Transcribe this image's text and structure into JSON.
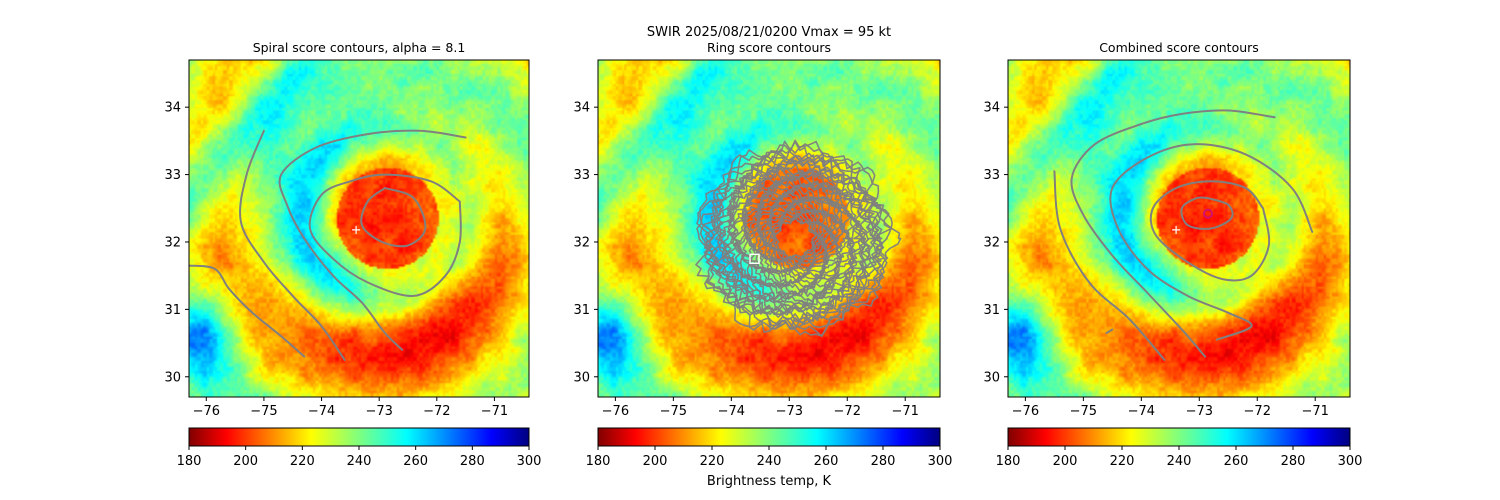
{
  "suptitle": "SWIR  2025/08/21/0200    Vmax = 95 kt",
  "colorbar": {
    "label": "Brightness temp, K",
    "ticks": [
      180,
      200,
      220,
      240,
      260,
      280,
      300
    ],
    "range": [
      180,
      300
    ],
    "colormap": "jet_r"
  },
  "chart_data": [
    {
      "type": "heatmap",
      "title": "Spiral score contours, alpha =  8.1",
      "xlim": [
        -76.3,
        -70.4
      ],
      "ylim": [
        29.7,
        34.7
      ],
      "xticks": [
        -76,
        -75,
        -74,
        -73,
        -72,
        -71
      ],
      "yticks": [
        30,
        31,
        32,
        33,
        34
      ],
      "xlabel": "",
      "ylabel": "",
      "eye_brightness_temp_K": 195,
      "markers": [
        {
          "kind": "plus",
          "color": "#ffffff",
          "lon": -73.4,
          "lat": 32.18
        }
      ],
      "contour_color": "#808080",
      "contours": [
        [
          [
            -72.9,
            32.8
          ],
          [
            -72.4,
            32.65
          ],
          [
            -72.2,
            32.2
          ],
          [
            -72.5,
            31.95
          ],
          [
            -72.95,
            32.0
          ],
          [
            -73.3,
            32.25
          ],
          [
            -73.2,
            32.6
          ],
          [
            -72.9,
            32.8
          ]
        ],
        [
          [
            -71.6,
            32.6
          ],
          [
            -72.1,
            32.9
          ],
          [
            -72.9,
            33.0
          ],
          [
            -73.5,
            32.9
          ],
          [
            -74.0,
            32.7
          ],
          [
            -74.2,
            32.2
          ],
          [
            -73.8,
            31.75
          ],
          [
            -73.2,
            31.4
          ],
          [
            -72.4,
            31.2
          ],
          [
            -71.85,
            31.5
          ],
          [
            -71.6,
            32.0
          ],
          [
            -71.6,
            32.6
          ]
        ],
        [
          [
            -71.5,
            33.55
          ],
          [
            -72.3,
            33.65
          ],
          [
            -73.2,
            33.6
          ],
          [
            -74.1,
            33.4
          ],
          [
            -74.7,
            33.0
          ],
          [
            -74.6,
            32.55
          ],
          [
            -74.3,
            32.05
          ],
          [
            -73.8,
            31.5
          ],
          [
            -73.3,
            31.1
          ],
          [
            -72.9,
            30.65
          ],
          [
            -72.6,
            30.4
          ]
        ],
        [
          [
            -75.0,
            33.65
          ],
          [
            -75.3,
            33.0
          ],
          [
            -75.4,
            32.3
          ],
          [
            -75.0,
            31.7
          ],
          [
            -74.5,
            31.2
          ],
          [
            -74.0,
            30.75
          ],
          [
            -73.6,
            30.25
          ]
        ],
        [
          [
            -76.3,
            31.65
          ],
          [
            -75.85,
            31.6
          ],
          [
            -75.6,
            31.3
          ],
          [
            -75.2,
            30.95
          ],
          [
            -74.7,
            30.6
          ],
          [
            -74.3,
            30.3
          ]
        ]
      ]
    },
    {
      "type": "heatmap",
      "title": "Ring score contours",
      "xlim": [
        -76.3,
        -70.4
      ],
      "ylim": [
        29.7,
        34.7
      ],
      "xticks": [
        -76,
        -75,
        -74,
        -73,
        -72,
        -71
      ],
      "yticks": [
        30,
        31,
        32,
        33,
        34
      ],
      "xlabel": "",
      "ylabel": "",
      "eye_brightness_temp_K": 200,
      "markers": [
        {
          "kind": "square",
          "color": "#ffffff",
          "lon": -73.6,
          "lat": 31.75
        }
      ],
      "contour_color": "#808080",
      "noisy_ring_region": {
        "center": [
          -72.9,
          32.05
        ],
        "outer_lon_radius": 1.6,
        "outer_lat_radius": 1.35
      },
      "contours": []
    },
    {
      "type": "heatmap",
      "title": "Combined score contours",
      "xlim": [
        -76.3,
        -70.4
      ],
      "ylim": [
        29.7,
        34.7
      ],
      "xticks": [
        -76,
        -75,
        -74,
        -73,
        -72,
        -71
      ],
      "yticks": [
        30,
        31,
        32,
        33,
        34
      ],
      "xlabel": "",
      "ylabel": "",
      "eye_brightness_temp_K": 195,
      "markers": [
        {
          "kind": "plus",
          "color": "#ffffff",
          "lon": -73.4,
          "lat": 32.18
        },
        {
          "kind": "circle",
          "color": "#d0106f",
          "lon": -72.85,
          "lat": 32.42
        }
      ],
      "contour_color": "#808080",
      "contours": [
        [
          [
            -72.85,
            32.65
          ],
          [
            -72.5,
            32.55
          ],
          [
            -72.45,
            32.35
          ],
          [
            -72.8,
            32.2
          ],
          [
            -73.2,
            32.25
          ],
          [
            -73.3,
            32.5
          ],
          [
            -73.05,
            32.65
          ],
          [
            -72.85,
            32.65
          ]
        ],
        [
          [
            -71.9,
            32.5
          ],
          [
            -72.2,
            32.8
          ],
          [
            -72.8,
            32.9
          ],
          [
            -73.4,
            32.8
          ],
          [
            -73.8,
            32.5
          ],
          [
            -73.75,
            32.1
          ],
          [
            -73.2,
            31.7
          ],
          [
            -72.6,
            31.45
          ],
          [
            -72.1,
            31.5
          ],
          [
            -71.8,
            31.95
          ],
          [
            -71.9,
            32.5
          ]
        ],
        [
          [
            -71.05,
            32.15
          ],
          [
            -71.4,
            32.8
          ],
          [
            -72.2,
            33.3
          ],
          [
            -73.1,
            33.45
          ],
          [
            -73.9,
            33.25
          ],
          [
            -74.5,
            32.8
          ],
          [
            -74.4,
            32.2
          ],
          [
            -73.9,
            31.6
          ],
          [
            -73.2,
            31.2
          ],
          [
            -72.5,
            30.95
          ],
          [
            -72.1,
            30.75
          ],
          [
            -72.7,
            30.55
          ]
        ],
        [
          [
            -71.7,
            33.85
          ],
          [
            -72.5,
            33.95
          ],
          [
            -73.3,
            33.9
          ],
          [
            -74.0,
            33.75
          ],
          [
            -74.8,
            33.45
          ],
          [
            -75.2,
            32.95
          ],
          [
            -75.0,
            32.4
          ],
          [
            -74.5,
            31.8
          ],
          [
            -73.9,
            31.25
          ],
          [
            -73.3,
            30.7
          ],
          [
            -72.9,
            30.3
          ]
        ],
        [
          [
            -75.5,
            33.05
          ],
          [
            -75.4,
            32.2
          ],
          [
            -74.9,
            31.4
          ],
          [
            -74.2,
            30.85
          ],
          [
            -73.6,
            30.25
          ]
        ],
        [
          [
            -74.6,
            30.65
          ],
          [
            -74.5,
            30.7
          ]
        ]
      ]
    }
  ]
}
